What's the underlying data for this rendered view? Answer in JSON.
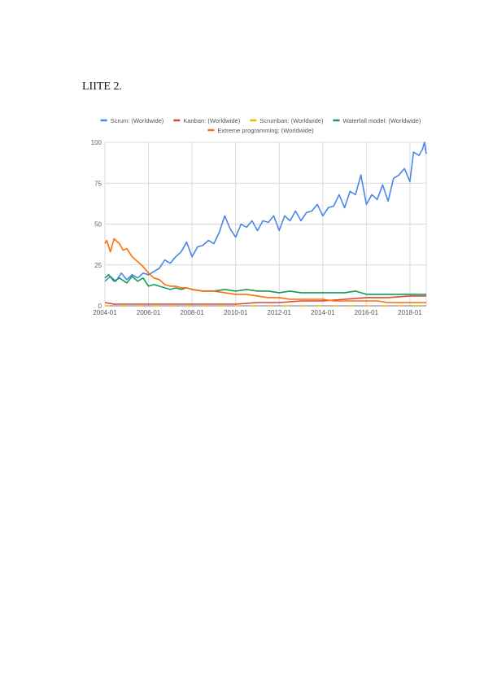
{
  "page": {
    "heading": "LIITE 2."
  },
  "chart_data": {
    "type": "line",
    "title": "",
    "xlabel": "",
    "ylabel": "",
    "x_start": "2004-01",
    "x_end": "2018-10",
    "x_ticks": [
      "2004-01",
      "2006-01",
      "2008-01",
      "2010-01",
      "2012-01",
      "2014-01",
      "2016-01",
      "2018-01"
    ],
    "ylim": [
      0,
      100
    ],
    "y_ticks": [
      "0",
      "25",
      "50",
      "75",
      "100"
    ],
    "grid": true,
    "legend_position": "top",
    "series": [
      {
        "name": "Scrum: (Worldwide)",
        "color": "#4a86e8",
        "points": [
          [
            "2004-01",
            15
          ],
          [
            "2004-04",
            18
          ],
          [
            "2004-07",
            15
          ],
          [
            "2004-10",
            20
          ],
          [
            "2005-01",
            16
          ],
          [
            "2005-04",
            19
          ],
          [
            "2005-07",
            17
          ],
          [
            "2005-10",
            20
          ],
          [
            "2006-01",
            19
          ],
          [
            "2006-04",
            21
          ],
          [
            "2006-07",
            23
          ],
          [
            "2006-10",
            28
          ],
          [
            "2007-01",
            26
          ],
          [
            "2007-04",
            30
          ],
          [
            "2007-07",
            33
          ],
          [
            "2007-10",
            39
          ],
          [
            "2008-01",
            30
          ],
          [
            "2008-04",
            36
          ],
          [
            "2008-07",
            37
          ],
          [
            "2008-10",
            40
          ],
          [
            "2009-01",
            38
          ],
          [
            "2009-04",
            45
          ],
          [
            "2009-07",
            55
          ],
          [
            "2009-10",
            47
          ],
          [
            "2010-01",
            42
          ],
          [
            "2010-04",
            50
          ],
          [
            "2010-07",
            48
          ],
          [
            "2010-10",
            52
          ],
          [
            "2011-01",
            46
          ],
          [
            "2011-04",
            52
          ],
          [
            "2011-07",
            51
          ],
          [
            "2011-10",
            55
          ],
          [
            "2012-01",
            46
          ],
          [
            "2012-04",
            55
          ],
          [
            "2012-07",
            52
          ],
          [
            "2012-10",
            58
          ],
          [
            "2013-01",
            52
          ],
          [
            "2013-04",
            57
          ],
          [
            "2013-07",
            58
          ],
          [
            "2013-10",
            62
          ],
          [
            "2014-01",
            55
          ],
          [
            "2014-04",
            60
          ],
          [
            "2014-07",
            61
          ],
          [
            "2014-10",
            68
          ],
          [
            "2015-01",
            60
          ],
          [
            "2015-04",
            70
          ],
          [
            "2015-07",
            68
          ],
          [
            "2015-10",
            80
          ],
          [
            "2016-01",
            62
          ],
          [
            "2016-04",
            68
          ],
          [
            "2016-07",
            65
          ],
          [
            "2016-10",
            74
          ],
          [
            "2017-01",
            64
          ],
          [
            "2017-04",
            78
          ],
          [
            "2017-07",
            80
          ],
          [
            "2017-10",
            84
          ],
          [
            "2018-01",
            76
          ],
          [
            "2018-03",
            94
          ],
          [
            "2018-06",
            92
          ],
          [
            "2018-08",
            96
          ],
          [
            "2018-09",
            100
          ],
          [
            "2018-10",
            93
          ]
        ]
      },
      {
        "name": "Kanban: (Worldwide)",
        "color": "#db4437",
        "points": [
          [
            "2004-01",
            2
          ],
          [
            "2004-06",
            1
          ],
          [
            "2005-01",
            1
          ],
          [
            "2006-01",
            1
          ],
          [
            "2007-01",
            1
          ],
          [
            "2008-01",
            1
          ],
          [
            "2009-01",
            1
          ],
          [
            "2010-01",
            1
          ],
          [
            "2011-01",
            2
          ],
          [
            "2012-01",
            2
          ],
          [
            "2013-01",
            3
          ],
          [
            "2014-01",
            3
          ],
          [
            "2015-01",
            4
          ],
          [
            "2016-01",
            5
          ],
          [
            "2017-01",
            5
          ],
          [
            "2018-01",
            6
          ],
          [
            "2018-10",
            6
          ]
        ]
      },
      {
        "name": "Scrumban: (Worldwide)",
        "color": "#f4b400",
        "points": [
          [
            "2004-01",
            0
          ],
          [
            "2006-01",
            0
          ],
          [
            "2008-01",
            0
          ],
          [
            "2010-01",
            0
          ],
          [
            "2012-01",
            0
          ],
          [
            "2014-01",
            0
          ],
          [
            "2016-01",
            0
          ],
          [
            "2018-10",
            0
          ]
        ]
      },
      {
        "name": "Waterfall model: (Worldwide)",
        "color": "#0f9d58",
        "points": [
          [
            "2004-01",
            17
          ],
          [
            "2004-03",
            19
          ],
          [
            "2004-06",
            15
          ],
          [
            "2004-09",
            17
          ],
          [
            "2005-01",
            14
          ],
          [
            "2005-04",
            18
          ],
          [
            "2005-07",
            15
          ],
          [
            "2005-10",
            17
          ],
          [
            "2006-01",
            12
          ],
          [
            "2006-04",
            13
          ],
          [
            "2006-07",
            12
          ],
          [
            "2006-10",
            11
          ],
          [
            "2007-01",
            10
          ],
          [
            "2007-04",
            11
          ],
          [
            "2007-07",
            10
          ],
          [
            "2007-10",
            11
          ],
          [
            "2008-01",
            10
          ],
          [
            "2008-07",
            9
          ],
          [
            "2009-01",
            9
          ],
          [
            "2009-07",
            10
          ],
          [
            "2010-01",
            9
          ],
          [
            "2010-07",
            10
          ],
          [
            "2011-01",
            9
          ],
          [
            "2011-07",
            9
          ],
          [
            "2012-01",
            8
          ],
          [
            "2012-07",
            9
          ],
          [
            "2013-01",
            8
          ],
          [
            "2013-07",
            8
          ],
          [
            "2014-01",
            8
          ],
          [
            "2014-07",
            8
          ],
          [
            "2015-01",
            8
          ],
          [
            "2015-07",
            9
          ],
          [
            "2016-01",
            7
          ],
          [
            "2016-07",
            7
          ],
          [
            "2017-01",
            7
          ],
          [
            "2017-07",
            7
          ],
          [
            "2018-01",
            7
          ],
          [
            "2018-10",
            7
          ]
        ]
      },
      {
        "name": "Extreme programming: (Worldwide)",
        "color": "#ff6d00",
        "points": [
          [
            "2004-01",
            38
          ],
          [
            "2004-02",
            40
          ],
          [
            "2004-04",
            33
          ],
          [
            "2004-06",
            41
          ],
          [
            "2004-09",
            38
          ],
          [
            "2004-11",
            34
          ],
          [
            "2005-01",
            35
          ],
          [
            "2005-04",
            30
          ],
          [
            "2005-07",
            27
          ],
          [
            "2005-10",
            24
          ],
          [
            "2006-01",
            20
          ],
          [
            "2006-04",
            17
          ],
          [
            "2006-07",
            16
          ],
          [
            "2006-10",
            13
          ],
          [
            "2007-01",
            12
          ],
          [
            "2007-04",
            12
          ],
          [
            "2007-07",
            11
          ],
          [
            "2007-10",
            11
          ],
          [
            "2008-01",
            10
          ],
          [
            "2008-07",
            9
          ],
          [
            "2009-01",
            9
          ],
          [
            "2009-07",
            8
          ],
          [
            "2010-01",
            7
          ],
          [
            "2010-07",
            7
          ],
          [
            "2011-01",
            6
          ],
          [
            "2011-07",
            5
          ],
          [
            "2012-01",
            5
          ],
          [
            "2012-07",
            4
          ],
          [
            "2013-01",
            4
          ],
          [
            "2013-07",
            4
          ],
          [
            "2014-01",
            4
          ],
          [
            "2014-07",
            3
          ],
          [
            "2015-01",
            3
          ],
          [
            "2015-07",
            3
          ],
          [
            "2016-01",
            3
          ],
          [
            "2016-07",
            3
          ],
          [
            "2017-01",
            2
          ],
          [
            "2017-07",
            2
          ],
          [
            "2018-01",
            2
          ],
          [
            "2018-10",
            2
          ]
        ]
      }
    ]
  }
}
